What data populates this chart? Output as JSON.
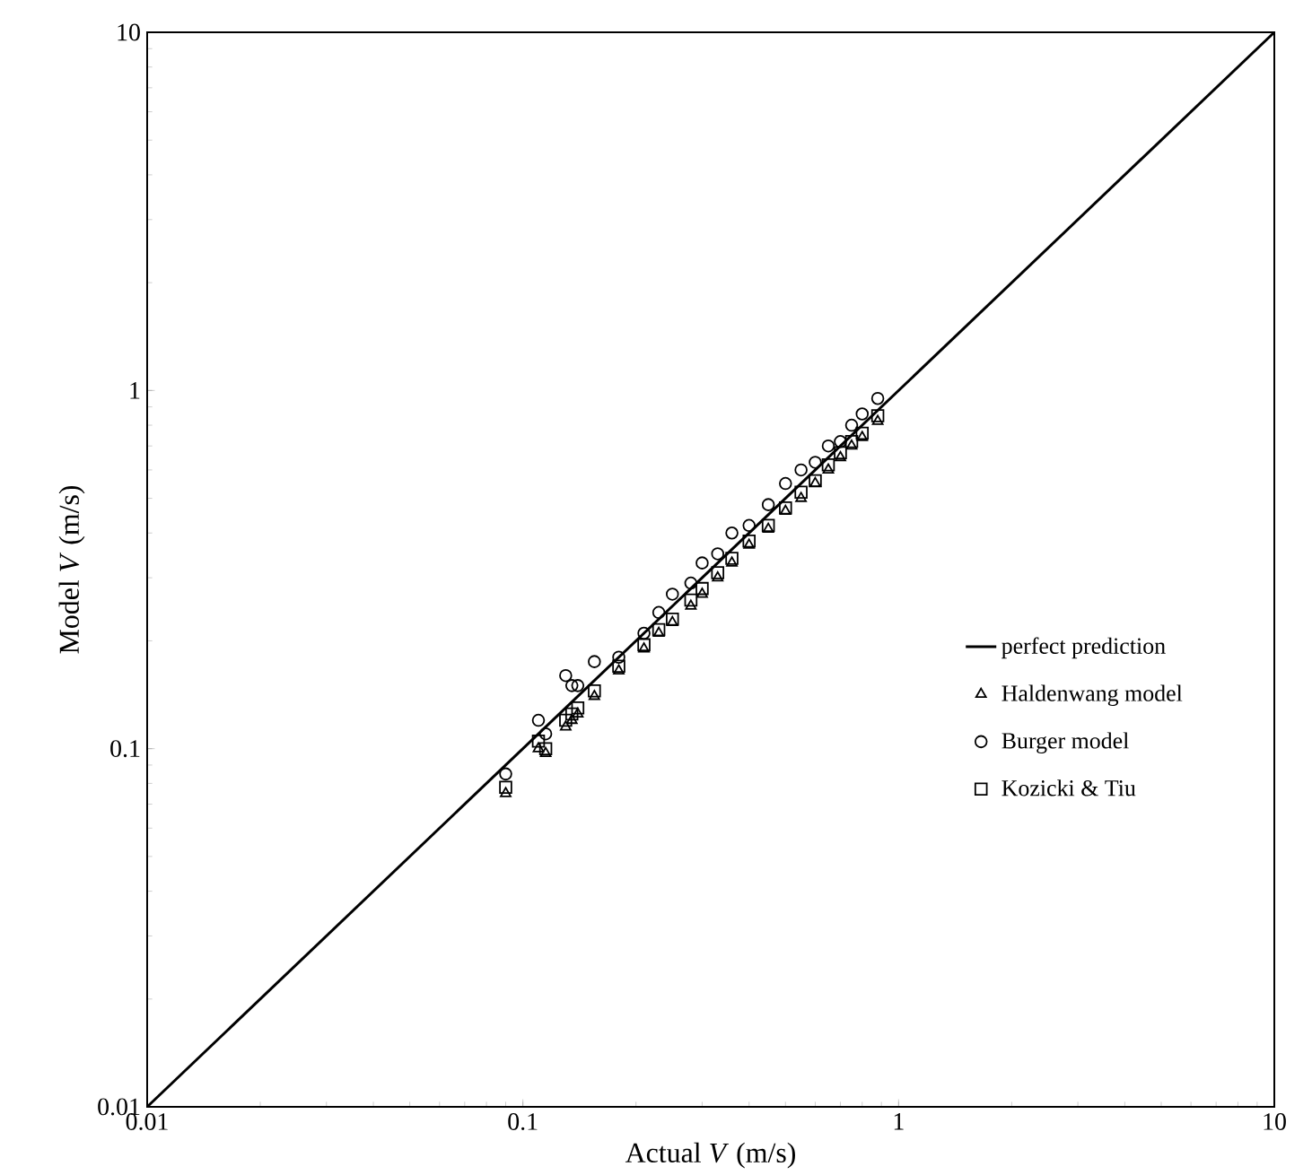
{
  "chart_data": {
    "type": "scatter",
    "xlabel": "Actual *V* (m/s)",
    "ylabel": "Model *V* (m/s)",
    "log": "xy",
    "xlim": [
      0.01,
      10
    ],
    "ylim": [
      0.01,
      10
    ],
    "xticks": [
      0.01,
      0.1,
      1,
      10
    ],
    "yticks": [
      0.01,
      0.1,
      1,
      10
    ],
    "grid": false,
    "legend": "bottom right",
    "x": [
      0.09,
      0.11,
      0.115,
      0.13,
      0.135,
      0.14,
      0.155,
      0.18,
      0.21,
      0.23,
      0.25,
      0.28,
      0.3,
      0.33,
      0.36,
      0.4,
      0.45,
      0.5,
      0.55,
      0.6,
      0.65,
      0.7,
      0.75,
      0.8,
      0.88
    ],
    "series": [
      {
        "name": "perfect prediction",
        "type": "line",
        "marker": "none",
        "color": "#000000",
        "x": [
          0.01,
          10
        ],
        "values": [
          0.01,
          10
        ]
      },
      {
        "name": "Haldenwang  model",
        "marker": "triangle",
        "color": "#000000",
        "values": [
          0.075,
          0.1,
          0.097,
          0.115,
          0.12,
          0.125,
          0.14,
          0.165,
          0.19,
          0.21,
          0.225,
          0.25,
          0.27,
          0.3,
          0.33,
          0.37,
          0.41,
          0.46,
          0.5,
          0.55,
          0.6,
          0.65,
          0.7,
          0.74,
          0.82
        ]
      },
      {
        "name": "Burger model",
        "marker": "circle",
        "color": "#000000",
        "values": [
          0.085,
          0.12,
          0.11,
          0.16,
          0.15,
          0.15,
          0.175,
          0.18,
          0.21,
          0.24,
          0.27,
          0.29,
          0.33,
          0.35,
          0.4,
          0.42,
          0.48,
          0.55,
          0.6,
          0.63,
          0.7,
          0.72,
          0.8,
          0.86,
          0.95
        ]
      },
      {
        "name": "Kozicki & Tiu",
        "marker": "square",
        "color": "#000000",
        "values": [
          0.078,
          0.105,
          0.1,
          0.12,
          0.125,
          0.13,
          0.145,
          0.17,
          0.195,
          0.215,
          0.23,
          0.26,
          0.28,
          0.31,
          0.34,
          0.38,
          0.42,
          0.47,
          0.52,
          0.56,
          0.62,
          0.67,
          0.72,
          0.76,
          0.85
        ]
      }
    ]
  }
}
